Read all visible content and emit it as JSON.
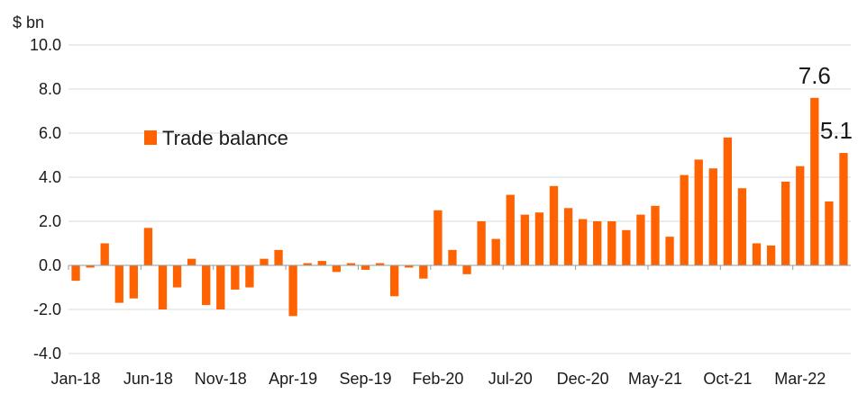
{
  "chart_data": {
    "type": "bar",
    "unit_label": "$ bn",
    "series": [
      {
        "name": "Trade balance",
        "color": "#ff6200",
        "values": [
          -0.7,
          -0.1,
          1.0,
          -1.7,
          -1.5,
          1.7,
          -2.0,
          -1.0,
          0.3,
          -1.8,
          -2.0,
          -1.1,
          -1.0,
          0.3,
          0.7,
          -2.3,
          0.1,
          0.2,
          -0.3,
          0.1,
          -0.2,
          0.1,
          -1.4,
          -0.1,
          -0.6,
          2.5,
          0.7,
          -0.4,
          2.0,
          1.2,
          3.2,
          2.3,
          2.4,
          3.6,
          2.6,
          2.1,
          2.0,
          2.0,
          1.6,
          2.3,
          2.7,
          1.3,
          4.1,
          4.8,
          4.4,
          5.8,
          3.5,
          1.0,
          0.9,
          3.8,
          4.5,
          7.6,
          2.9,
          5.1
        ]
      }
    ],
    "x_tick_labels": [
      {
        "index": 0,
        "label": "Jan-18"
      },
      {
        "index": 5,
        "label": "Jun-18"
      },
      {
        "index": 10,
        "label": "Nov-18"
      },
      {
        "index": 15,
        "label": "Apr-19"
      },
      {
        "index": 20,
        "label": "Sep-19"
      },
      {
        "index": 25,
        "label": "Feb-20"
      },
      {
        "index": 30,
        "label": "Jul-20"
      },
      {
        "index": 35,
        "label": "Dec-20"
      },
      {
        "index": 40,
        "label": "May-21"
      },
      {
        "index": 45,
        "label": "Oct-21"
      },
      {
        "index": 50,
        "label": "Mar-22"
      }
    ],
    "y_ticks": [
      "-4.0",
      "-2.0",
      "0.0",
      "2.0",
      "4.0",
      "6.0",
      "8.0",
      "10.0"
    ],
    "ylim": [
      -4,
      10
    ],
    "grid": true,
    "legend_position": "top-left",
    "annotations": [
      {
        "index": 51,
        "text": "7.6"
      },
      {
        "index": 53,
        "text": "5.1"
      }
    ]
  }
}
